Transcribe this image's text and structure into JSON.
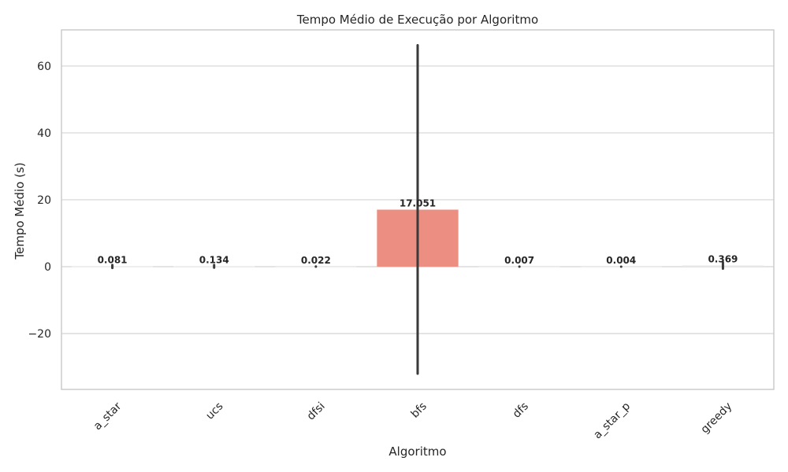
{
  "chart_data": {
    "type": "bar",
    "title": "Tempo Médio de Execução por Algoritmo",
    "xlabel": "Algoritmo",
    "ylabel": "Tempo Médio (s)",
    "categories": [
      "a_star",
      "ucs",
      "dfsi",
      "bfs",
      "dfs",
      "a_star_p",
      "greedy"
    ],
    "values": [
      0.081,
      0.134,
      0.022,
      17.051,
      0.007,
      0.004,
      0.369
    ],
    "value_labels": [
      "0.081",
      "0.134",
      "0.022",
      "17.051",
      "0.007",
      "0.004",
      "0.369"
    ],
    "error_low": [
      -0.4,
      -0.3,
      0.0,
      -32.0,
      0.0,
      0.0,
      -0.6
    ],
    "error_high": [
      0.5,
      0.5,
      0.05,
      66.2,
      0.02,
      0.01,
      1.3
    ],
    "ylim": [
      -36.7,
      70.8
    ],
    "yticks": [
      -20,
      0,
      20,
      40,
      60
    ],
    "ytick_labels": [
      "−20",
      "0",
      "20",
      "40",
      "60"
    ],
    "grid": true,
    "bar_colors": [
      "#f0f0f0",
      "#ececec",
      "#f2f2f2",
      "#ec8f82",
      "#f3f3f3",
      "#f3f3f3",
      "#e9e9e9"
    ],
    "error_color": "#3a3a3a",
    "grid_color": "#d4d4d4",
    "frame_color": "#cccccc"
  }
}
